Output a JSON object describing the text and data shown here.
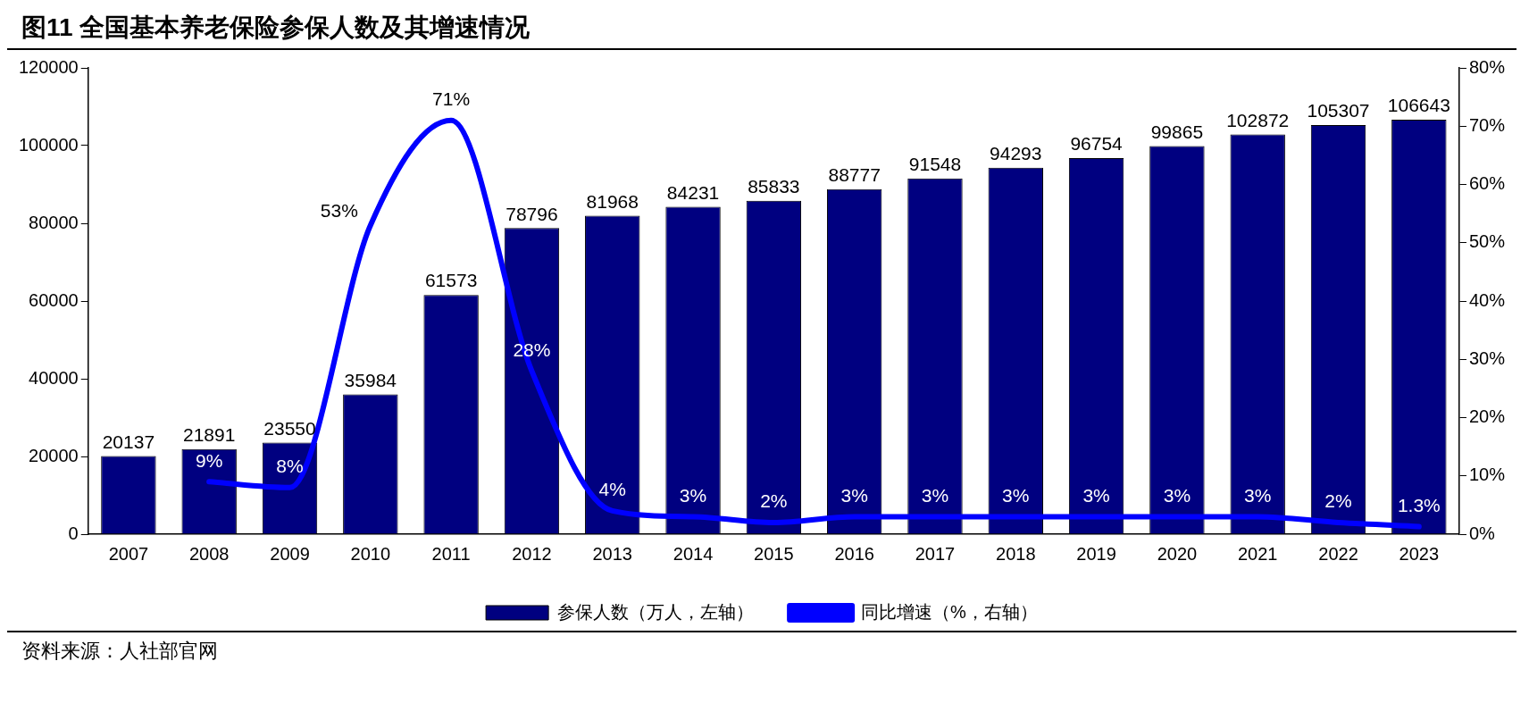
{
  "chart_data": {
    "type": "bar",
    "title": "图11 全国基本养老保险参保人数及其增速情况",
    "categories": [
      "2007",
      "2008",
      "2009",
      "2010",
      "2011",
      "2012",
      "2013",
      "2014",
      "2015",
      "2016",
      "2017",
      "2018",
      "2019",
      "2020",
      "2021",
      "2022",
      "2023"
    ],
    "series": [
      {
        "name": "参保人数（万人，左轴）",
        "color": "#000080",
        "values": [
          20137,
          21891,
          23550,
          35984,
          61573,
          78796,
          81968,
          84231,
          85833,
          88777,
          91548,
          94293,
          96754,
          99865,
          102872,
          105307,
          106643
        ]
      },
      {
        "name": "同比增速（%，右轴）",
        "type": "line",
        "axis": "y2",
        "color": "#0000ff",
        "marker": "none",
        "line_style": "solid",
        "values": [
          null,
          9,
          8,
          53,
          71,
          28,
          4,
          3,
          2,
          3,
          3,
          3,
          3,
          3,
          3,
          2,
          1.3
        ],
        "value_labels": [
          null,
          "9%",
          "8%",
          "53%",
          "71%",
          "28%",
          "4%",
          "3%",
          "2%",
          "3%",
          "3%",
          "3%",
          "3%",
          "3%",
          "3%",
          "2%",
          "1.3%"
        ]
      }
    ],
    "data_labels": true,
    "ylim": [
      0,
      120000
    ],
    "yticks": [
      0,
      20000,
      40000,
      60000,
      80000,
      100000,
      120000
    ],
    "y2lim": [
      0,
      80
    ],
    "y2ticks": [
      {
        "value": 0,
        "label": "0%"
      },
      {
        "value": 10,
        "label": "10%"
      },
      {
        "value": 20,
        "label": "20%"
      },
      {
        "value": 30,
        "label": "30%"
      },
      {
        "value": 40,
        "label": "40%"
      },
      {
        "value": 50,
        "label": "50%"
      },
      {
        "value": 60,
        "label": "60%"
      },
      {
        "value": 70,
        "label": "70%"
      },
      {
        "value": 80,
        "label": "80%"
      }
    ],
    "grid": false,
    "legend": "bottom",
    "annotations": [
      "资料来源：人社部官网"
    ]
  }
}
